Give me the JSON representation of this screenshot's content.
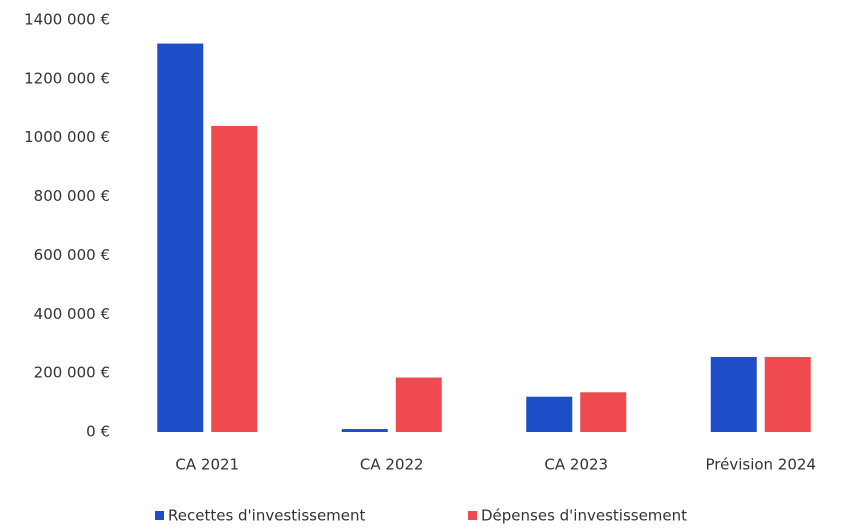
{
  "chart_data": {
    "type": "bar",
    "categories": [
      "CA 2021",
      "CA 2022",
      "CA 2023",
      "Prévision 2024"
    ],
    "series": [
      {
        "name": "Recettes d'investissement",
        "color": "#1f4fc8",
        "values": [
          1320000,
          10000,
          120000,
          255000
        ]
      },
      {
        "name": "Dépenses d'investissement",
        "color": "#ee4a4f",
        "values": [
          1040000,
          185000,
          135000,
          255000
        ]
      }
    ],
    "ylim": [
      0,
      1400000
    ],
    "yticks": [
      {
        "value": 0,
        "label": "0 €"
      },
      {
        "value": 200000,
        "label": "200 000 €"
      },
      {
        "value": 400000,
        "label": "400 000 €"
      },
      {
        "value": 600000,
        "label": "600 000 €"
      },
      {
        "value": 800000,
        "label": "800 000 €"
      },
      {
        "value": 1000000,
        "label": "1000 000 €"
      },
      {
        "value": 1200000,
        "label": "1200 000 €"
      },
      {
        "value": 1400000,
        "label": "1400 000 €"
      }
    ],
    "grid": false,
    "legend": "bottom"
  }
}
